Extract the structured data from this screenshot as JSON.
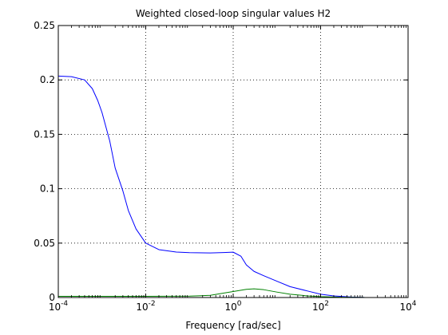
{
  "chart_data": {
    "type": "line",
    "title": "Weighted closed-loop singular values H2",
    "xlabel": "Frequency [rad/sec]",
    "ylabel": "",
    "x_scale": "log",
    "xlim": [
      0.0001,
      10000
    ],
    "ylim": [
      0,
      0.25
    ],
    "grid": true,
    "x_ticks": [
      {
        "value": 0.0001,
        "base": "10",
        "exp": "-4"
      },
      {
        "value": 0.01,
        "base": "10",
        "exp": "-2"
      },
      {
        "value": 1,
        "base": "10",
        "exp": "0"
      },
      {
        "value": 100,
        "base": "10",
        "exp": "2"
      },
      {
        "value": 10000,
        "base": "10",
        "exp": "4"
      }
    ],
    "y_ticks": [
      {
        "value": 0,
        "label": "0"
      },
      {
        "value": 0.05,
        "label": "0.05"
      },
      {
        "value": 0.1,
        "label": "0.1"
      },
      {
        "value": 0.15,
        "label": "0.15"
      },
      {
        "value": 0.2,
        "label": "0.2"
      },
      {
        "value": 0.25,
        "label": "0.25"
      }
    ],
    "series": [
      {
        "color": "#0000ff",
        "points": [
          [
            0.0001,
            0.2035
          ],
          [
            0.0002,
            0.203
          ],
          [
            0.0004,
            0.2
          ],
          [
            0.0006,
            0.192
          ],
          [
            0.0008,
            0.181
          ],
          [
            0.001,
            0.17
          ],
          [
            0.0015,
            0.144
          ],
          [
            0.002,
            0.119
          ],
          [
            0.003,
            0.098
          ],
          [
            0.004,
            0.08
          ],
          [
            0.006,
            0.063
          ],
          [
            0.01,
            0.05
          ],
          [
            0.02,
            0.044
          ],
          [
            0.05,
            0.0418
          ],
          [
            0.1,
            0.0412
          ],
          [
            0.3,
            0.041
          ],
          [
            0.6,
            0.0413
          ],
          [
            1.0,
            0.0417
          ],
          [
            1.5,
            0.038
          ],
          [
            2.0,
            0.03
          ],
          [
            3.0,
            0.024
          ],
          [
            5.0,
            0.02
          ],
          [
            10,
            0.015
          ],
          [
            20,
            0.01
          ],
          [
            50,
            0.006
          ],
          [
            100,
            0.003
          ],
          [
            200,
            0.0015
          ],
          [
            500,
            0.0005
          ],
          [
            1000,
            0.0001
          ]
        ]
      },
      {
        "color": "#008000",
        "points": [
          [
            0.0001,
            0.0011
          ],
          [
            0.001,
            0.0011
          ],
          [
            0.01,
            0.0011
          ],
          [
            0.1,
            0.0013
          ],
          [
            0.3,
            0.002
          ],
          [
            0.6,
            0.004
          ],
          [
            1.0,
            0.0055
          ],
          [
            2.0,
            0.0075
          ],
          [
            3.0,
            0.008
          ],
          [
            5.0,
            0.0072
          ],
          [
            10,
            0.005
          ],
          [
            20,
            0.003
          ],
          [
            50,
            0.0015
          ],
          [
            100,
            0.0008
          ],
          [
            300,
            0.0003
          ],
          [
            1000,
            0.0001
          ]
        ]
      }
    ]
  }
}
